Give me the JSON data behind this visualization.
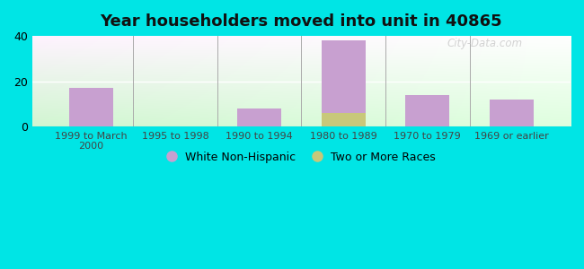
{
  "title": "Year householders moved into unit in 40865",
  "categories": [
    "1999 to March\n2000",
    "1995 to 1998",
    "1990 to 1994",
    "1980 to 1989",
    "1970 to 1979",
    "1969 or earlier"
  ],
  "white_non_hispanic": [
    17,
    0,
    8,
    38,
    14,
    12
  ],
  "two_or_more_races": [
    0,
    0,
    0,
    6,
    0,
    0
  ],
  "bar_color_white": "#c8a0d0",
  "bar_color_two": "#c8c87a",
  "background_outer": "#00e5e5",
  "ylim": [
    0,
    40
  ],
  "yticks": [
    0,
    20,
    40
  ],
  "bar_width": 0.35,
  "legend_label_white": "White Non-Hispanic",
  "legend_label_two": "Two or More Races",
  "watermark": "City-Data.com"
}
